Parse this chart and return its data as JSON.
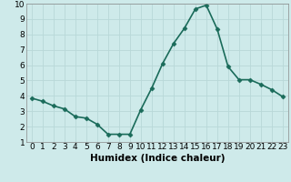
{
  "x": [
    0,
    1,
    2,
    3,
    4,
    5,
    6,
    7,
    8,
    9,
    10,
    11,
    12,
    13,
    14,
    15,
    16,
    17,
    18,
    19,
    20,
    21,
    22,
    23
  ],
  "y": [
    3.85,
    3.65,
    3.35,
    3.15,
    2.65,
    2.55,
    2.15,
    1.5,
    1.5,
    1.5,
    3.1,
    4.5,
    6.1,
    7.4,
    8.4,
    9.65,
    9.9,
    8.35,
    5.9,
    5.05,
    5.05,
    4.75,
    4.4,
    3.95
  ],
  "line_color": "#1a6b5a",
  "marker": "D",
  "marker_size": 2.5,
  "xlabel": "Humidex (Indice chaleur)",
  "xlim": [
    -0.5,
    23.5
  ],
  "ylim": [
    1,
    10
  ],
  "yticks": [
    1,
    2,
    3,
    4,
    5,
    6,
    7,
    8,
    9,
    10
  ],
  "xticks": [
    0,
    1,
    2,
    3,
    4,
    5,
    6,
    7,
    8,
    9,
    10,
    11,
    12,
    13,
    14,
    15,
    16,
    17,
    18,
    19,
    20,
    21,
    22,
    23
  ],
  "bg_color": "#ceeaea",
  "grid_color": "#b8d8d8",
  "tick_label_fontsize": 6.5,
  "xlabel_fontsize": 7.5,
  "line_width": 1.2
}
